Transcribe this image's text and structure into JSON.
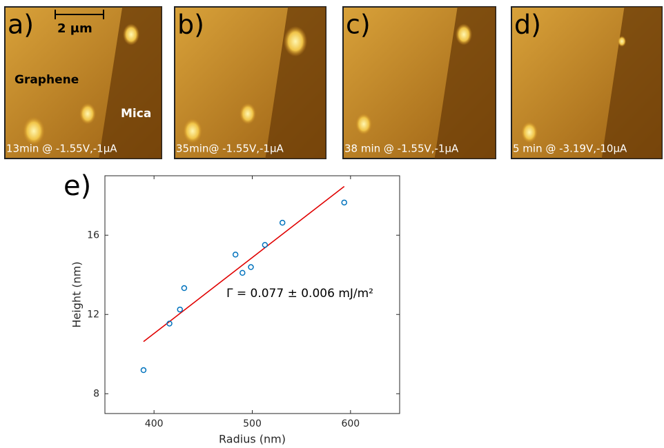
{
  "panels": [
    {
      "label": "a)",
      "caption": "13min @ -1.55V,-1μA",
      "scale_bar": "2 μm",
      "annotations": [
        "Graphene",
        "Mica"
      ]
    },
    {
      "label": "b)",
      "caption": "35min@ -1.55V,-1μA"
    },
    {
      "label": "c)",
      "caption": "38 min @ -1.55V,-1μA"
    },
    {
      "label": "d)",
      "caption": "5 min @ -3.19V,-10μA"
    }
  ],
  "chart_data": {
    "type": "scatter",
    "panel_label": "e)",
    "x_label": "Radius (nm)",
    "y_label": "Height (nm)",
    "annotation": "Γ = 0.077 ± 0.006 mJ/m²",
    "xlim": [
      350,
      650
    ],
    "ylim": [
      7,
      19
    ],
    "xticks": [
      400,
      500,
      600
    ],
    "yticks": [
      8,
      12,
      16
    ],
    "series": [
      {
        "x": [
          389.3,
          415.7,
          426.4,
          430.7,
          482.9,
          490,
          498.6,
          512.9,
          530.7,
          593.6
        ],
        "values": [
          9.19,
          11.54,
          12.25,
          13.33,
          15.02,
          14.1,
          14.39,
          15.51,
          16.63,
          17.65
        ],
        "color": "#0072bd"
      }
    ],
    "fit": {
      "x": [
        389.3,
        593.6
      ],
      "values": [
        10.63,
        18.46
      ],
      "color": "#e00000"
    }
  }
}
